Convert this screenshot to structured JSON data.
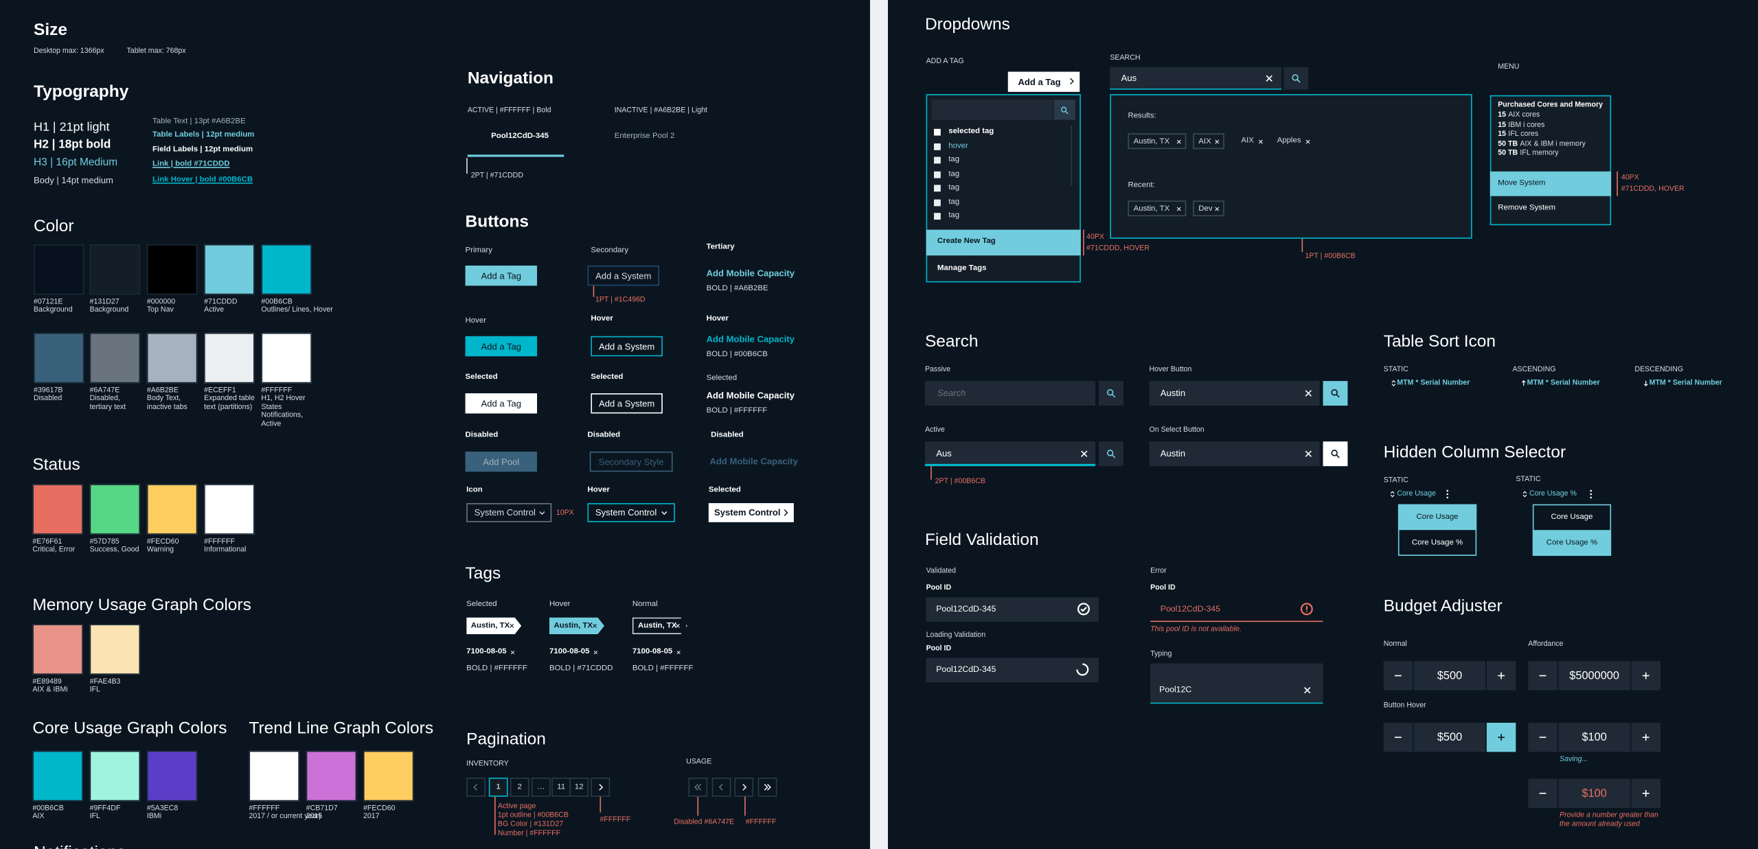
{
  "size": {
    "title": "Size",
    "desktop": "Desktop max: 1366px",
    "tablet": "Tablet max: 768px"
  },
  "typography": {
    "title": "Typography",
    "h1": "H1 | 21pt light",
    "h2": "H2 | 18pt bold",
    "h3": "H3 | 16pt Medium",
    "body": "Body | 14pt medium",
    "table_text": "Table Text | 13pt #A6B2BE",
    "table_labels": "Table Labels | 12pt medium",
    "field_labels": "Field Labels | 12pt medium",
    "link": "Link | bold #71CDDD",
    "link_hover": "Link Hover | bold #00B6CB"
  },
  "color": {
    "title": "Color",
    "swatches": [
      {
        "hex": "#07121E",
        "label": "Background"
      },
      {
        "hex": "#131D27",
        "label": "Background"
      },
      {
        "hex": "#000000",
        "label": "Top Nav"
      },
      {
        "hex": "#71CDDD",
        "label": "Active"
      },
      {
        "hex": "#00B6CB",
        "label": "Outlines/ Lines, Hover"
      },
      {
        "hex": "#39617B",
        "label": "Disabled"
      },
      {
        "hex": "#6A747E",
        "label": "Disabled, tertiary text"
      },
      {
        "hex": "#A6B2BE",
        "label": "Body Text, inactive tabs"
      },
      {
        "hex": "#ECEFF1",
        "label": "Expanded table text (partitions)"
      },
      {
        "hex": "#FFFFFF",
        "label": "H1, H2 Hover States Notifications, Active"
      }
    ]
  },
  "status": {
    "title": "Status",
    "swatches": [
      {
        "hex": "#E76F61",
        "label": "Critical, Error"
      },
      {
        "hex": "#57D785",
        "label": "Success, Good"
      },
      {
        "hex": "#FECD60",
        "label": "Warning"
      },
      {
        "hex": "#FFFFFF",
        "label": "Informational"
      }
    ]
  },
  "memory": {
    "title": "Memory Usage Graph Colors",
    "swatches": [
      {
        "hex": "#E89489",
        "label": "AIX & IBMi"
      },
      {
        "hex": "#FAE4B3",
        "label": "IFL"
      }
    ]
  },
  "core": {
    "title": "Core Usage Graph Colors",
    "swatches": [
      {
        "hex": "#00B6CB",
        "label": "AIX"
      },
      {
        "hex": "#9FF4DF",
        "label": "IFL"
      },
      {
        "hex": "#5A3EC8",
        "label": "IBMi"
      }
    ]
  },
  "trend": {
    "title": "Trend Line Graph Colors",
    "swatches": [
      {
        "hex": "#FFFFFF",
        "label": "2017 / or current year)"
      },
      {
        "hex": "#CB71D7",
        "label": "2016"
      },
      {
        "hex": "#FECD60",
        "label": "2017"
      }
    ]
  },
  "notifications": {
    "title": "Notifications"
  },
  "navigation": {
    "title": "Navigation",
    "active_note": "ACTIVE | #FFFFFF | Bold",
    "inactive_note": "INACTIVE | #A6B2BE | Light",
    "active_tab": "Pool12CdD-345",
    "inactive_tab": "Enterprise Pool 2",
    "underline_note": "2PT | #71CDDD"
  },
  "buttons": {
    "title": "Buttons",
    "labels": [
      "Primary",
      "Secondary",
      "Tertiary",
      "Hover",
      "Hover",
      "Hover",
      "Selected",
      "Selected",
      "Selected",
      "Disabled",
      "Disabled",
      "Disabled",
      "Icon",
      "Hover",
      "Selected"
    ],
    "primary": "Add a Tag",
    "secondary": "Add a System",
    "tertiary": "Add Mobile Capacity",
    "add_pool": "Add Pool",
    "secondary_style": "Secondary Style",
    "system_control": "System Control",
    "notes": [
      "1PT | #1C496D",
      "BOLD | #A6B2BE",
      "BOLD | #00B6CB",
      "BOLD | #FFFFFF",
      "10PX"
    ]
  },
  "tags": {
    "title": "Tags",
    "labels": [
      "Selected",
      "Hover",
      "Normal"
    ],
    "chip": "Austin, TX",
    "id": "7100-08-05",
    "notes": [
      "BOLD | #FFFFFF",
      "BOLD | #71CDDD",
      "BOLD | #FFFFFF"
    ]
  },
  "pagination": {
    "title": "Pagination",
    "inventory": "INVENTORY",
    "usage": "USAGE",
    "pages": [
      "1",
      "2",
      "…",
      "11",
      "12"
    ],
    "notes": [
      "Active page",
      "1pt outline | #00B6CB",
      "BG Color | #131D27",
      "Number | #FFFFFF"
    ],
    "next_note": "#FFFFFF",
    "disabled_note": "Disabled #6A747E",
    "enabled_note": "#FFFFFF"
  },
  "dropdowns": {
    "title": "Dropdowns",
    "add_tag_label": "ADD A TAG",
    "search_label": "SEARCH",
    "menu_label": "MENU",
    "add_tag_button": "Add a Tag",
    "items": [
      "selected tag",
      "hover",
      "tag",
      "tag",
      "tag",
      "tag",
      "tag",
      "tag"
    ],
    "create": "Create New Tag",
    "manage": "Manage Tags",
    "hover_note": [
      "40PX",
      "#71CDDD, HOVER"
    ],
    "search_value": "Aus",
    "results_title": "Results:",
    "results": [
      "Austin, TX",
      "AIX",
      "AIX",
      "Apples"
    ],
    "recent_title": "Recent:",
    "recent": [
      "Austin, TX",
      "Dev"
    ],
    "border_note": "1PT | #00B6CB",
    "menu_title": "Purchased Cores and Memory",
    "menu_lines": [
      {
        "num": "15",
        "text": "AIX cores"
      },
      {
        "num": "15",
        "text": "IBM i cores"
      },
      {
        "num": "15",
        "text": "IFL cores"
      },
      {
        "num": "50 TB",
        "text": "AIX & IBM i memory"
      },
      {
        "num": "50 TB",
        "text": "IFL memory"
      }
    ],
    "menu_items": [
      "Move System",
      "Remove System"
    ],
    "menu_note": [
      "40PX",
      "#71CDDD, HOVER"
    ]
  },
  "search": {
    "title": "Search",
    "passive": "Passive",
    "hover_button": "Hover Button",
    "active": "Active",
    "on_select": "On Select Button",
    "placeholder": "Search",
    "austin": "Austin",
    "aus": "Aus",
    "note": "2PT | #00B6CB"
  },
  "field_validation": {
    "title": "Field Validation",
    "validated": "Validated",
    "pool_id": "Pool ID",
    "value": "Pool12CdD-345",
    "loading": "Loading Validation",
    "error": "Error",
    "error_msg": "This pool ID is not available.",
    "typing": "Typing",
    "typing_value": "Pool12C"
  },
  "table_sort": {
    "title": "Table Sort Icon",
    "states": [
      "STATIC",
      "ASCENDING",
      "DESCENDING"
    ],
    "column": "MTM * Serial Number"
  },
  "hidden_column": {
    "title": "Hidden Column Selector",
    "static": "STATIC",
    "options": [
      "Core Usage",
      "Core Usage %"
    ]
  },
  "budget": {
    "title": "Budget Adjuster",
    "normal": "Normal",
    "affordance": "Affordance",
    "button_hover": "Button Hover",
    "values": [
      "$500",
      "$5000000",
      "$500",
      "$100",
      "$100"
    ],
    "saving": "Saving...",
    "error": [
      "Provide a number greater than",
      "the amount already used"
    ]
  }
}
